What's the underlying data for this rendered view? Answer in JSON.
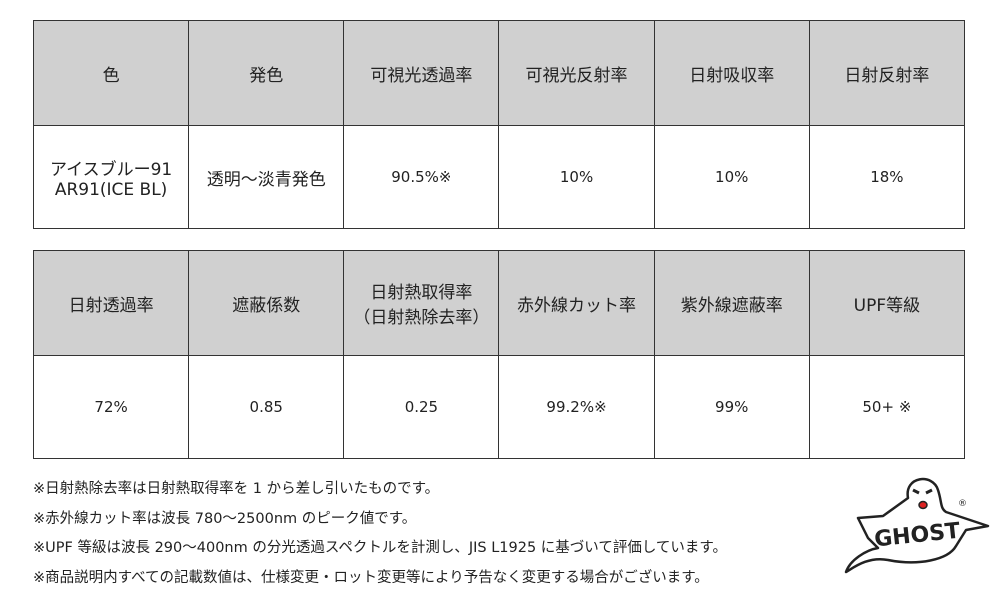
{
  "table1": {
    "headers": [
      "色",
      "発色",
      "可視光透過率",
      "可視光反射率",
      "日射吸収率",
      "日射反射率"
    ],
    "row": {
      "color_line1": "アイスブルー91",
      "color_line2": "AR91(ICE BL)",
      "hue": "透明～淡青発色",
      "visible_transmittance": "90.5%※",
      "visible_reflectance": "10%",
      "solar_absorptance": "10%",
      "solar_reflectance": "18%"
    }
  },
  "table2": {
    "headers": [
      "日射透過率",
      "遮蔽係数",
      "日射熱取得率",
      "（日射熱除去率）",
      "赤外線カット率",
      "紫外線遮蔽率",
      "UPF等級"
    ],
    "row": {
      "solar_transmittance": "72%",
      "shading_coefficient": "0.85",
      "solar_heat_gain": "0.25",
      "ir_cut": "99.2%※",
      "uv_shield": "99%",
      "upf": "50+ ※"
    }
  },
  "notes": [
    "※日射熱除去率は日射熱取得率を 1 から差し引いたものです。",
    "※赤外線カット率は波長 780～2500nm のピーク値です。",
    "※UPF 等級は波長 290～400nm の分光透過スペクトルを計測し、JIS L1925 に基づいて評価しています。",
    "※商品説明内すべての記載数値は、仕様変更・ロット変更等により予告なく変更する場合がございます。"
  ],
  "logo": {
    "text": "GHOST",
    "mark": "®"
  },
  "colors": {
    "header_bg": "#d0d0d0",
    "border": "#333333"
  }
}
